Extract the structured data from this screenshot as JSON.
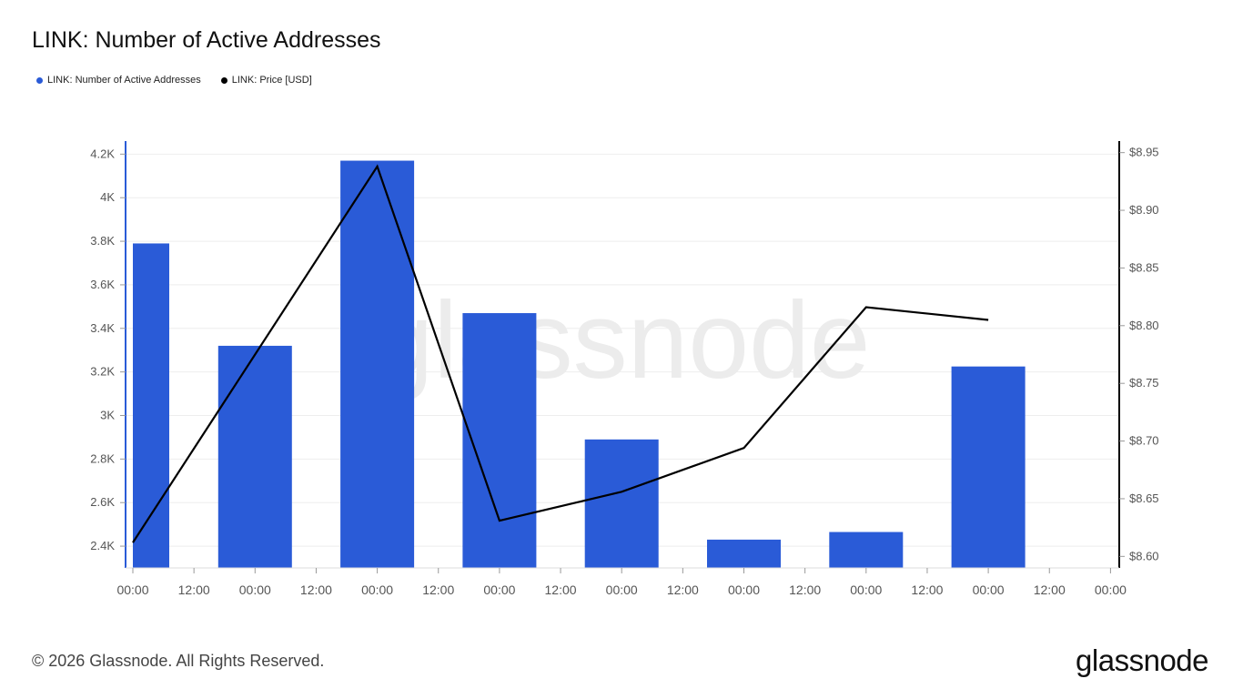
{
  "page": {
    "title": "LINK: Number of Active Addresses",
    "copyright": "© 2026 Glassnode. All Rights Reserved.",
    "logo_text": "glassnode",
    "watermark": "glassnode"
  },
  "colors": {
    "bars": "#2a5bd7",
    "line": "#000000",
    "grid": "#eeeeee",
    "left_axis": "#2a5bd7",
    "right_axis": "#000000",
    "watermark": "#ececec"
  },
  "chart_data": {
    "type": "bar",
    "title": "LINK: Number of Active Addresses",
    "legend": {
      "placement": "top-left",
      "entries": [
        {
          "name": "LINK: Number of Active Addresses",
          "color": "#2a5bd7"
        },
        {
          "name": "LINK: Price [USD]",
          "color": "#000000"
        }
      ]
    },
    "x_ticks": [
      "00:00",
      "12:00",
      "00:00",
      "12:00",
      "00:00",
      "12:00",
      "00:00",
      "12:00",
      "00:00",
      "12:00",
      "00:00",
      "12:00",
      "00:00",
      "12:00",
      "00:00",
      "12:00",
      "00:00"
    ],
    "series": [
      {
        "name": "LINK: Number of Active Addresses",
        "type": "bar",
        "axis": "left",
        "x": [
          0,
          1,
          2,
          3,
          4,
          5,
          6,
          7
        ],
        "values": [
          3790,
          3320,
          4170,
          3470,
          2890,
          2430,
          2465,
          3225
        ]
      },
      {
        "name": "LINK: Price [USD]",
        "type": "line",
        "axis": "right",
        "x": [
          0,
          1,
          2,
          3,
          4,
          5,
          6,
          7
        ],
        "values": [
          8.612,
          8.775,
          8.938,
          8.631,
          8.656,
          8.694,
          8.816,
          8.805
        ]
      }
    ],
    "y_left": {
      "range": [
        2300,
        4260
      ],
      "ticks": [
        2400,
        2600,
        2800,
        3000,
        3200,
        3400,
        3600,
        3800,
        4000,
        4200
      ],
      "tick_labels": [
        "2.4K",
        "2.6K",
        "2.8K",
        "3K",
        "3.2K",
        "3.4K",
        "3.6K",
        "3.8K",
        "4K",
        "4.2K"
      ]
    },
    "y_right": {
      "range": [
        8.59,
        8.96
      ],
      "ticks": [
        8.6,
        8.65,
        8.7,
        8.75,
        8.8,
        8.85,
        8.9,
        8.95
      ],
      "tick_labels": [
        "$8.60",
        "$8.65",
        "$8.70",
        "$8.75",
        "$8.80",
        "$8.85",
        "$8.90",
        "$8.95"
      ]
    },
    "grid": true
  }
}
